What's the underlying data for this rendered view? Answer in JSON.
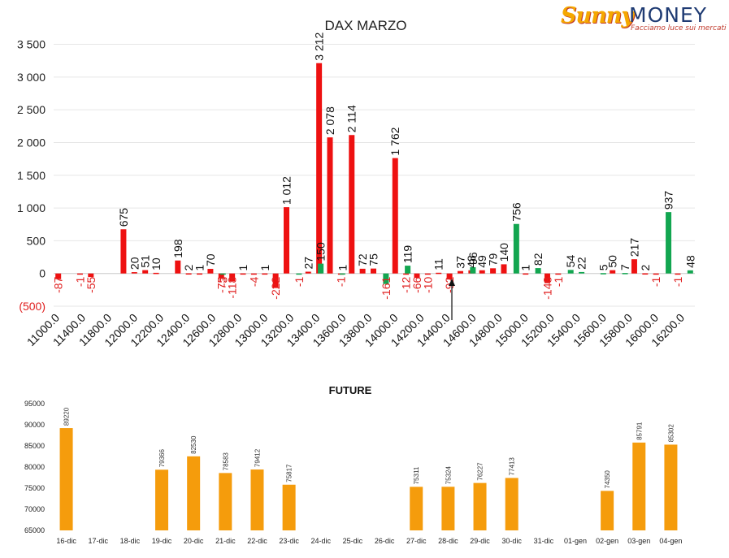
{
  "logo": {
    "brand_a": "Sunny",
    "brand_b": "MONEY",
    "tagline": "Facciamo luce sui mercati"
  },
  "colors": {
    "call": "#ee1111",
    "put": "#12a650",
    "future": "#f59c0c",
    "neg_label": "#e02020"
  },
  "chart_data": [
    {
      "type": "bar",
      "title": "DAX MARZO",
      "ylim": [
        -500,
        3500
      ],
      "yticks": [
        -500,
        0,
        500,
        1000,
        1500,
        2000,
        2500,
        3000,
        3500
      ],
      "ytick_labels": [
        "(500)",
        "0",
        "500",
        "1 000",
        "1 500",
        "2 000",
        "2 500",
        "3 000",
        "3 500"
      ],
      "xtick_labels": [
        "11000.0",
        "11400.0",
        "11800.0",
        "12000.0",
        "12200.0",
        "12400.0",
        "12600.0",
        "12800.0",
        "13000.0",
        "13200.0",
        "13400.0",
        "13600.0",
        "13800.0",
        "14000.0",
        "14200.0",
        "14400.0",
        "14600.0",
        "14800.0",
        "15000.0",
        "15200.0",
        "15400.0",
        "15600.0",
        "15800.0",
        "16000.0",
        "16200.0"
      ],
      "grid": true,
      "annotation": "arrow at 14400.0",
      "series": [
        {
          "color_key": "call",
          "values": [
            {
              "i": 0,
              "v": -87,
              "label": "-87"
            },
            {
              "i": 2,
              "v": -1,
              "label": "-1"
            },
            {
              "i": 3,
              "v": -55,
              "label": "-55"
            },
            {
              "i": 6,
              "v": 675,
              "label": "675"
            },
            {
              "i": 7,
              "v": 20,
              "label": "20"
            },
            {
              "i": 8,
              "v": 51,
              "label": "51"
            },
            {
              "i": 9,
              "v": 10,
              "label": "10"
            },
            {
              "i": 11,
              "v": 198,
              "label": "198"
            },
            {
              "i": 12,
              "v": 2,
              "label": "2"
            },
            {
              "i": 13,
              "v": 1,
              "label": "1"
            },
            {
              "i": 14,
              "v": 70,
              "label": "70"
            },
            {
              "i": 15,
              "v": -75,
              "label": "-75"
            },
            {
              "i": 16,
              "v": -118,
              "label": "-118"
            },
            {
              "i": 17,
              "v": 1,
              "label": "1"
            },
            {
              "i": 18,
              "v": -4,
              "label": "-4"
            },
            {
              "i": 19,
              "v": 1,
              "label": "1"
            },
            {
              "i": 20,
              "v": -222,
              "label": "-222"
            },
            {
              "i": 21,
              "v": 1012,
              "label": "1 012"
            },
            {
              "i": 23,
              "v": 27,
              "label": "27"
            },
            {
              "i": 24,
              "v": 3212,
              "label": "3 212"
            },
            {
              "i": 25,
              "v": 2078,
              "label": "2 078"
            },
            {
              "i": 26,
              "v": -1,
              "label": "-1"
            },
            {
              "i": 27,
              "v": 2114,
              "label": "2 114"
            },
            {
              "i": 28,
              "v": 72,
              "label": "72"
            },
            {
              "i": 29,
              "v": 75,
              "label": "75"
            },
            {
              "i": 31,
              "v": 1762,
              "label": "1 762"
            },
            {
              "i": 32,
              "v": -12,
              "label": "-12"
            },
            {
              "i": 33,
              "v": -66,
              "label": "-66"
            },
            {
              "i": 34,
              "v": -10,
              "label": "-10"
            },
            {
              "i": 35,
              "v": 11,
              "label": "11"
            },
            {
              "i": 36,
              "v": -92,
              "label": "-92"
            },
            {
              "i": 37,
              "v": 37,
              "label": "37"
            },
            {
              "i": 38,
              "v": 48,
              "label": "48"
            },
            {
              "i": 39,
              "v": 49,
              "label": "49"
            },
            {
              "i": 40,
              "v": 79,
              "label": "79"
            },
            {
              "i": 41,
              "v": 140,
              "label": "140"
            },
            {
              "i": 43,
              "v": 1,
              "label": "1"
            },
            {
              "i": 45,
              "v": -148,
              "label": "-148"
            },
            {
              "i": 46,
              "v": -1,
              "label": "-1"
            },
            {
              "i": 51,
              "v": 50,
              "label": "50"
            },
            {
              "i": 53,
              "v": 217,
              "label": "217"
            },
            {
              "i": 54,
              "v": 2,
              "label": "2"
            },
            {
              "i": 55,
              "v": -1,
              "label": "-1"
            },
            {
              "i": 57,
              "v": -1,
              "label": "-1"
            }
          ]
        },
        {
          "color_key": "put",
          "values": [
            {
              "i": 15,
              "v": -3,
              "label": "-3"
            },
            {
              "i": 22,
              "v": -1,
              "label": "-1"
            },
            {
              "i": 24,
              "v": 150,
              "label": "150"
            },
            {
              "i": 26,
              "v": 1,
              "label": "1"
            },
            {
              "i": 30,
              "v": -161,
              "label": "-161"
            },
            {
              "i": 32,
              "v": 119,
              "label": "119"
            },
            {
              "i": 38,
              "v": 96,
              "label": "96"
            },
            {
              "i": 42,
              "v": 756,
              "label": "756"
            },
            {
              "i": 44,
              "v": 82,
              "label": "82"
            },
            {
              "i": 47,
              "v": 54,
              "label": "54"
            },
            {
              "i": 48,
              "v": 22,
              "label": "22"
            },
            {
              "i": 50,
              "v": 5,
              "label": "5"
            },
            {
              "i": 52,
              "v": 7,
              "label": "7"
            },
            {
              "i": 56,
              "v": 937,
              "label": "937"
            },
            {
              "i": 58,
              "v": 48,
              "label": "48"
            }
          ]
        }
      ]
    },
    {
      "type": "bar",
      "title": "FUTURE",
      "ylim": [
        65000,
        95000
      ],
      "yticks": [
        65000,
        70000,
        75000,
        80000,
        85000,
        90000,
        95000
      ],
      "categories": [
        "16-dic",
        "17-dic",
        "18-dic",
        "19-dic",
        "20-dic",
        "21-dic",
        "22-dic",
        "23-dic",
        "24-dic",
        "25-dic",
        "26-dic",
        "27-dic",
        "28-dic",
        "29-dic",
        "30-dic",
        "31-dic",
        "01-gen",
        "02-gen",
        "03-gen",
        "04-gen"
      ],
      "values": [
        89220,
        null,
        null,
        79366,
        82530,
        78583,
        79412,
        75817,
        null,
        null,
        null,
        75311,
        75324,
        76227,
        77413,
        null,
        null,
        74350,
        85791,
        85302
      ]
    }
  ]
}
